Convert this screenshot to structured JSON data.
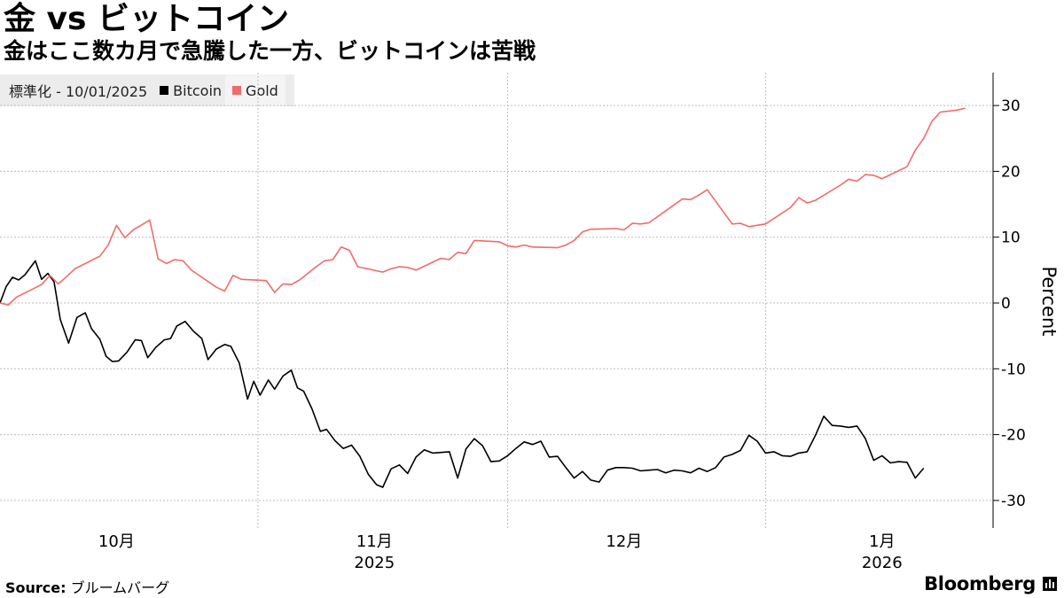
{
  "header": {
    "title": "金 vs ビットコイン",
    "subtitle": "金はここ数カ月で急騰した一方、ビットコインは苦戦"
  },
  "legend": {
    "prefix": "標準化  - 10/01/2025",
    "items": [
      {
        "label": "Bitcoin",
        "color": "#000000"
      },
      {
        "label": "Gold",
        "color": "#f26b6b"
      }
    ]
  },
  "footer": {
    "source_label": "Source:",
    "source_text": "ブルームバーグ",
    "brand": "Bloomberg"
  },
  "chart_data": {
    "type": "line",
    "ylabel": "Percent",
    "ylim": [
      -34,
      35
    ],
    "yticks": [
      30,
      20,
      10,
      0,
      -10,
      -20,
      -30
    ],
    "ytick_labels": [
      "30",
      "20",
      "10",
      "0",
      "-10",
      "-20",
      "-30"
    ],
    "x_labels": [
      {
        "date": "2025-10-15",
        "label": "10月",
        "sub": ""
      },
      {
        "date": "2025-11-15",
        "label": "11月",
        "sub": "2025"
      },
      {
        "date": "2025-12-15",
        "label": "12月",
        "sub": ""
      },
      {
        "date": "2026-01-15",
        "label": "1月",
        "sub": "2026"
      }
    ],
    "x_gridlines": [
      "2025-11-01",
      "2025-12-01",
      "2026-01-01"
    ],
    "xlim": [
      "2025-10-01",
      "2026-01-26"
    ],
    "grid": true,
    "legend_position": "top-left",
    "series": [
      {
        "name": "Bitcoin",
        "color": "#000000",
        "points": [
          [
            "2025-10-01 00:00",
            0
          ],
          [
            "2025-10-01 18:00",
            2.5
          ],
          [
            "2025-10-02 12:00",
            3.9
          ],
          [
            "2025-10-03 06:00",
            3.5
          ],
          [
            "2025-10-04 00:00",
            4.3
          ],
          [
            "2025-10-05 06:00",
            6.4
          ],
          [
            "2025-10-06 00:00",
            3.6
          ],
          [
            "2025-10-06 18:00",
            4.5
          ],
          [
            "2025-10-07 12:00",
            3.2
          ],
          [
            "2025-10-08 06:00",
            -2.5
          ],
          [
            "2025-10-09 06:00",
            -6.1
          ],
          [
            "2025-10-10 06:00",
            -2.2
          ],
          [
            "2025-10-11 06:00",
            -1.5
          ],
          [
            "2025-10-12 00:00",
            -3.9
          ],
          [
            "2025-10-13 00:00",
            -5.5
          ],
          [
            "2025-10-13 18:00",
            -8.1
          ],
          [
            "2025-10-14 12:00",
            -8.9
          ],
          [
            "2025-10-15 06:00",
            -8.8
          ],
          [
            "2025-10-16 06:00",
            -7.5
          ],
          [
            "2025-10-17 06:00",
            -5.6
          ],
          [
            "2025-10-18 00:00",
            -5.7
          ],
          [
            "2025-10-18 18:00",
            -8.3
          ],
          [
            "2025-10-19 18:00",
            -6.7
          ],
          [
            "2025-10-20 18:00",
            -5.6
          ],
          [
            "2025-10-21 12:00",
            -5.4
          ],
          [
            "2025-10-22 06:00",
            -3.5
          ],
          [
            "2025-10-23 06:00",
            -2.8
          ],
          [
            "2025-10-24 06:00",
            -4.3
          ],
          [
            "2025-10-25 06:00",
            -5.4
          ],
          [
            "2025-10-26 00:00",
            -8.6
          ],
          [
            "2025-10-27 00:00",
            -7.0
          ],
          [
            "2025-10-28 00:00",
            -6.3
          ],
          [
            "2025-10-28 18:00",
            -6.6
          ],
          [
            "2025-10-29 18:00",
            -9.1
          ],
          [
            "2025-10-30 18:00",
            -14.6
          ],
          [
            "2025-10-31 12:00",
            -11.9
          ],
          [
            "2025-11-01 06:00",
            -14.0
          ],
          [
            "2025-11-02 06:00",
            -11.7
          ],
          [
            "2025-11-03 00:00",
            -13.1
          ],
          [
            "2025-11-04 00:00",
            -11.1
          ],
          [
            "2025-11-05 00:00",
            -10.2
          ],
          [
            "2025-11-05 18:00",
            -12.9
          ],
          [
            "2025-11-06 12:00",
            -13.4
          ],
          [
            "2025-11-07 12:00",
            -16.1
          ],
          [
            "2025-11-08 12:00",
            -19.5
          ],
          [
            "2025-11-09 06:00",
            -19.2
          ],
          [
            "2025-11-10 06:00",
            -20.9
          ],
          [
            "2025-11-11 06:00",
            -22.1
          ],
          [
            "2025-11-12 06:00",
            -21.6
          ],
          [
            "2025-11-13 06:00",
            -23.3
          ],
          [
            "2025-11-14 06:00",
            -26.0
          ],
          [
            "2025-11-15 06:00",
            -27.6
          ],
          [
            "2025-11-16 00:00",
            -28.0
          ],
          [
            "2025-11-17 00:00",
            -25.2
          ],
          [
            "2025-11-18 00:00",
            -24.6
          ],
          [
            "2025-11-19 00:00",
            -25.9
          ],
          [
            "2025-11-20 00:00",
            -23.4
          ],
          [
            "2025-11-21 00:00",
            -22.3
          ],
          [
            "2025-11-22 00:00",
            -22.8
          ],
          [
            "2025-11-23 00:00",
            -22.7
          ],
          [
            "2025-11-24 00:00",
            -22.6
          ],
          [
            "2025-11-25 00:00",
            -26.6
          ],
          [
            "2025-11-26 00:00",
            -22.2
          ],
          [
            "2025-11-27 00:00",
            -20.6
          ],
          [
            "2025-11-28 00:00",
            -21.7
          ],
          [
            "2025-11-29 00:00",
            -24.1
          ],
          [
            "2025-11-30 00:00",
            -24.0
          ],
          [
            "2025-12-01 00:00",
            -23.2
          ],
          [
            "2025-12-02 00:00",
            -22.1
          ],
          [
            "2025-12-03 00:00",
            -21.1
          ],
          [
            "2025-12-04 00:00",
            -21.5
          ],
          [
            "2025-12-05 00:00",
            -21.0
          ],
          [
            "2025-12-06 00:00",
            -23.4
          ],
          [
            "2025-12-07 00:00",
            -23.3
          ],
          [
            "2025-12-08 00:00",
            -25.0
          ],
          [
            "2025-12-09 00:00",
            -26.6
          ],
          [
            "2025-12-10 00:00",
            -25.6
          ],
          [
            "2025-12-11 00:00",
            -26.9
          ],
          [
            "2025-12-12 00:00",
            -27.2
          ],
          [
            "2025-12-13 00:00",
            -25.4
          ],
          [
            "2025-12-14 00:00",
            -25.0
          ],
          [
            "2025-12-15 00:00",
            -25.0
          ],
          [
            "2025-12-16 00:00",
            -25.1
          ],
          [
            "2025-12-17 00:00",
            -25.5
          ],
          [
            "2025-12-18 00:00",
            -25.4
          ],
          [
            "2025-12-19 00:00",
            -25.3
          ],
          [
            "2025-12-20 00:00",
            -25.8
          ],
          [
            "2025-12-21 00:00",
            -25.4
          ],
          [
            "2025-12-22 00:00",
            -25.5
          ],
          [
            "2025-12-23 00:00",
            -25.8
          ],
          [
            "2025-12-24 00:00",
            -25.1
          ],
          [
            "2025-12-25 00:00",
            -25.6
          ],
          [
            "2025-12-26 00:00",
            -25.0
          ],
          [
            "2025-12-27 00:00",
            -23.4
          ],
          [
            "2025-12-28 00:00",
            -23.0
          ],
          [
            "2025-12-29 00:00",
            -22.4
          ],
          [
            "2025-12-30 00:00",
            -20.1
          ],
          [
            "2025-12-31 00:00",
            -21.0
          ],
          [
            "2026-01-01 00:00",
            -22.8
          ],
          [
            "2026-01-02 00:00",
            -22.6
          ],
          [
            "2026-01-03 00:00",
            -23.2
          ],
          [
            "2026-01-04 00:00",
            -23.3
          ],
          [
            "2026-01-05 00:00",
            -22.8
          ],
          [
            "2026-01-06 00:00",
            -22.6
          ],
          [
            "2026-01-07 00:00",
            -20.1
          ],
          [
            "2026-01-08 00:00",
            -17.2
          ],
          [
            "2026-01-09 00:00",
            -18.6
          ],
          [
            "2026-01-10 00:00",
            -18.7
          ],
          [
            "2026-01-11 00:00",
            -18.9
          ],
          [
            "2026-01-12 00:00",
            -18.7
          ],
          [
            "2026-01-13 00:00",
            -20.6
          ],
          [
            "2026-01-14 00:00",
            -23.9
          ],
          [
            "2026-01-15 00:00",
            -23.2
          ],
          [
            "2026-01-16 00:00",
            -24.3
          ],
          [
            "2026-01-17 00:00",
            -24.1
          ],
          [
            "2026-01-18 00:00",
            -24.2
          ],
          [
            "2026-01-19 00:00",
            -26.6
          ],
          [
            "2026-01-20 00:00",
            -25.1
          ]
        ]
      },
      {
        "name": "Gold",
        "color": "#f26b6b",
        "points": [
          [
            "2025-10-01 00:00",
            0
          ],
          [
            "2025-10-02 00:00",
            -0.3
          ],
          [
            "2025-10-03 00:00",
            0.9
          ],
          [
            "2025-10-06 00:00",
            2.8
          ],
          [
            "2025-10-07 00:00",
            4.2
          ],
          [
            "2025-10-08 00:00",
            2.9
          ],
          [
            "2025-10-09 00:00",
            4.0
          ],
          [
            "2025-10-10 00:00",
            5.2
          ],
          [
            "2025-10-13 00:00",
            7.1
          ],
          [
            "2025-10-14 00:00",
            8.8
          ],
          [
            "2025-10-15 00:00",
            11.8
          ],
          [
            "2025-10-16 00:00",
            9.9
          ],
          [
            "2025-10-17 00:00",
            11.1
          ],
          [
            "2025-10-19 00:00",
            12.6
          ],
          [
            "2025-10-20 00:00",
            6.7
          ],
          [
            "2025-10-21 00:00",
            6.0
          ],
          [
            "2025-10-22 00:00",
            6.6
          ],
          [
            "2025-10-23 00:00",
            6.4
          ],
          [
            "2025-10-24 00:00",
            5.0
          ],
          [
            "2025-10-27 00:00",
            2.4
          ],
          [
            "2025-10-28 00:00",
            1.8
          ],
          [
            "2025-10-29 00:00",
            4.2
          ],
          [
            "2025-10-30 00:00",
            3.6
          ],
          [
            "2025-11-02 00:00",
            3.4
          ],
          [
            "2025-11-03 00:00",
            1.6
          ],
          [
            "2025-11-04 00:00",
            2.9
          ],
          [
            "2025-11-05 00:00",
            2.8
          ],
          [
            "2025-11-06 00:00",
            3.5
          ],
          [
            "2025-11-08 00:00",
            5.5
          ],
          [
            "2025-11-09 00:00",
            6.4
          ],
          [
            "2025-11-10 00:00",
            6.6
          ],
          [
            "2025-11-11 00:00",
            8.5
          ],
          [
            "2025-11-12 00:00",
            8.0
          ],
          [
            "2025-11-13 00:00",
            5.5
          ],
          [
            "2025-11-16 00:00",
            4.7
          ],
          [
            "2025-11-17 00:00",
            5.2
          ],
          [
            "2025-11-18 00:00",
            5.5
          ],
          [
            "2025-11-19 00:00",
            5.4
          ],
          [
            "2025-11-20 00:00",
            5.0
          ],
          [
            "2025-11-23 00:00",
            6.8
          ],
          [
            "2025-11-24 00:00",
            6.6
          ],
          [
            "2025-11-25 00:00",
            7.7
          ],
          [
            "2025-11-26 00:00",
            7.5
          ],
          [
            "2025-11-27 00:00",
            9.5
          ],
          [
            "2025-11-30 00:00",
            9.3
          ],
          [
            "2025-12-01 00:00",
            8.7
          ],
          [
            "2025-12-02 00:00",
            8.5
          ],
          [
            "2025-12-03 00:00",
            8.8
          ],
          [
            "2025-12-04 00:00",
            8.5
          ],
          [
            "2025-12-07 00:00",
            8.4
          ],
          [
            "2025-12-08 00:00",
            8.8
          ],
          [
            "2025-12-09 00:00",
            9.5
          ],
          [
            "2025-12-10 00:00",
            10.8
          ],
          [
            "2025-12-11 00:00",
            11.2
          ],
          [
            "2025-12-14 00:00",
            11.3
          ],
          [
            "2025-12-15 00:00",
            11.1
          ],
          [
            "2025-12-16 00:00",
            12.1
          ],
          [
            "2025-12-17 00:00",
            12.0
          ],
          [
            "2025-12-18 00:00",
            12.2
          ],
          [
            "2025-12-21 00:00",
            14.9
          ],
          [
            "2025-12-22 00:00",
            15.8
          ],
          [
            "2025-12-23 00:00",
            15.7
          ],
          [
            "2025-12-24 00:00",
            16.4
          ],
          [
            "2025-12-25 00:00",
            17.2
          ],
          [
            "2025-12-28 00:00",
            12.0
          ],
          [
            "2025-12-29 00:00",
            12.1
          ],
          [
            "2025-12-30 00:00",
            11.6
          ],
          [
            "2026-01-01 00:00",
            12.0
          ],
          [
            "2026-01-04 00:00",
            14.5
          ],
          [
            "2026-01-05 00:00",
            16.0
          ],
          [
            "2026-01-06 00:00",
            15.2
          ],
          [
            "2026-01-07 00:00",
            15.6
          ],
          [
            "2026-01-10 00:00",
            17.9
          ],
          [
            "2026-01-11 00:00",
            18.8
          ],
          [
            "2026-01-12 00:00",
            18.5
          ],
          [
            "2026-01-13 00:00",
            19.5
          ],
          [
            "2026-01-14 00:00",
            19.4
          ],
          [
            "2026-01-15 00:00",
            18.9
          ],
          [
            "2026-01-18 00:00",
            20.7
          ],
          [
            "2026-01-19 00:00",
            23.2
          ],
          [
            "2026-01-20 00:00",
            25.0
          ],
          [
            "2026-01-21 00:00",
            27.6
          ],
          [
            "2026-01-22 00:00",
            29.0
          ],
          [
            "2026-01-24 00:00",
            29.3
          ],
          [
            "2026-01-25 00:00",
            29.6
          ]
        ]
      }
    ]
  }
}
